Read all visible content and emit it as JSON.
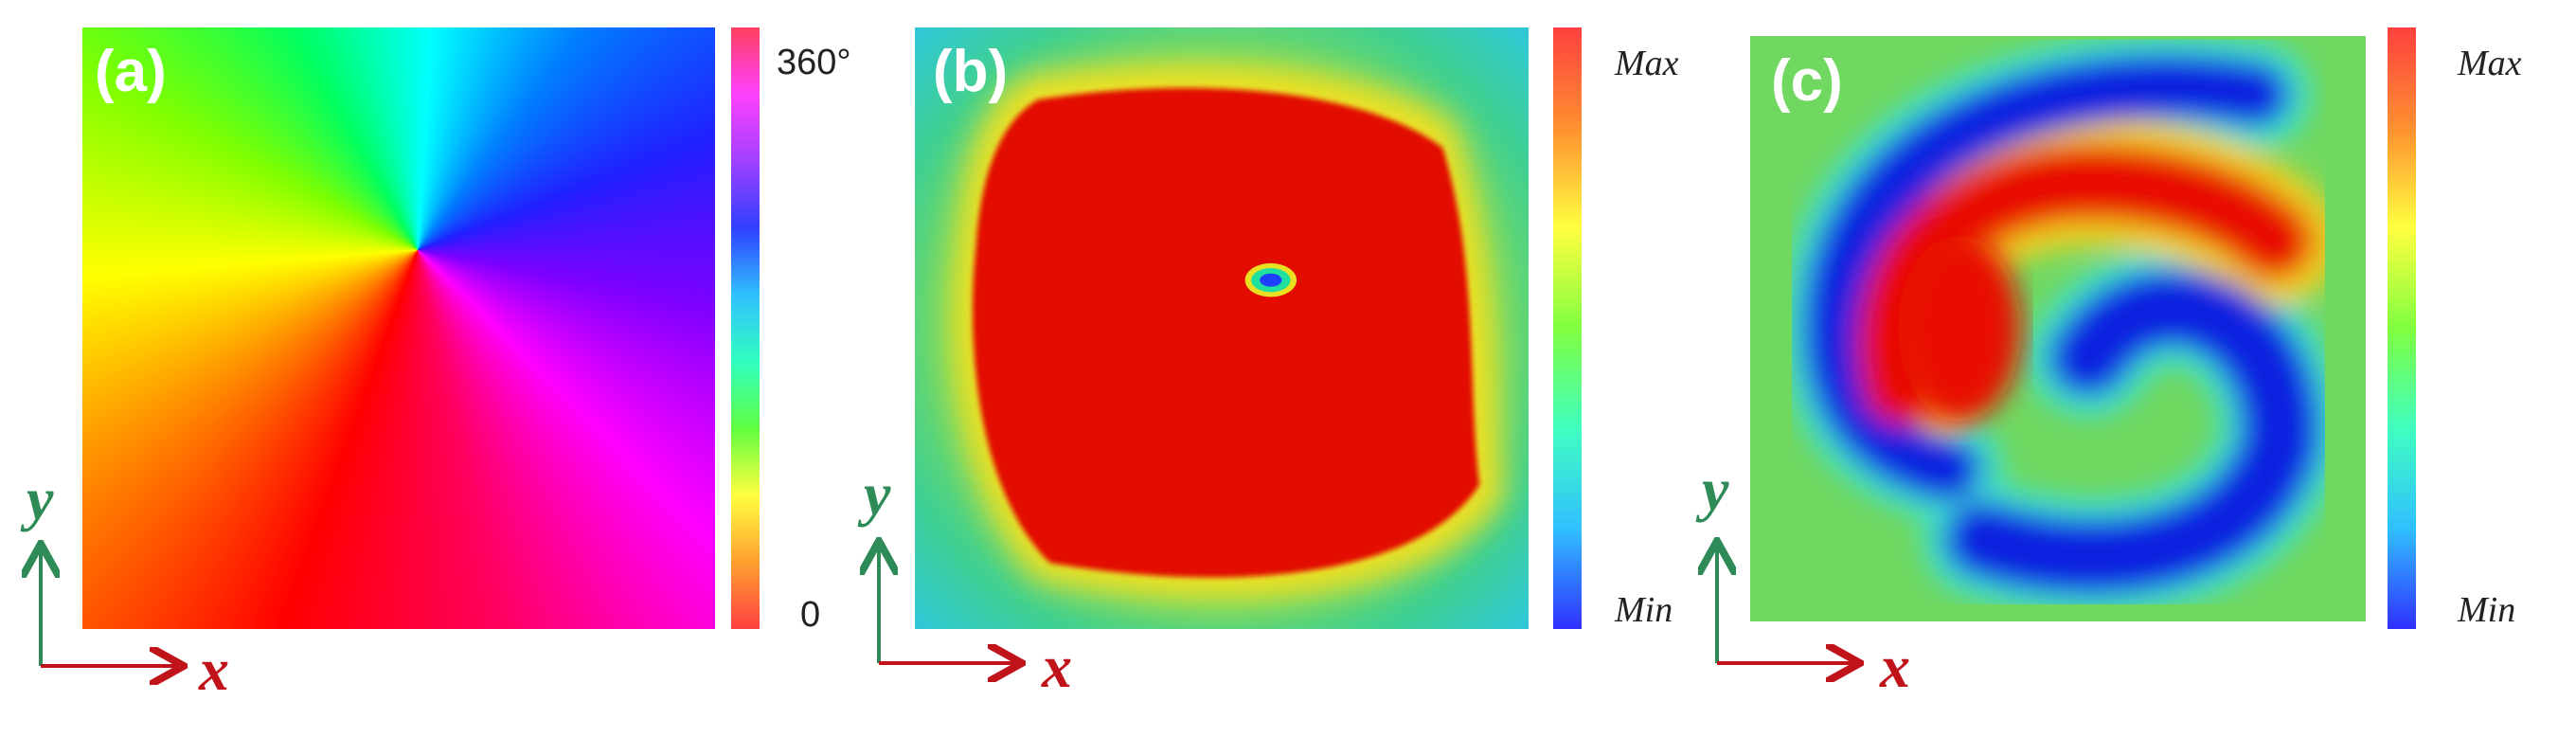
{
  "panels": [
    {
      "label": "(a)",
      "colorbar": {
        "top": "360°",
        "bottom": "0"
      },
      "axes": {
        "x": "x",
        "y": "y"
      }
    },
    {
      "label": "(b)",
      "colorbar": {
        "top": "Max",
        "bottom": "Min"
      },
      "axes": {
        "x": "x",
        "y": "y"
      }
    },
    {
      "label": "(c)",
      "colorbar": {
        "top": "Max",
        "bottom": "Min"
      },
      "axes": {
        "x": "x",
        "y": "y"
      }
    }
  ]
}
